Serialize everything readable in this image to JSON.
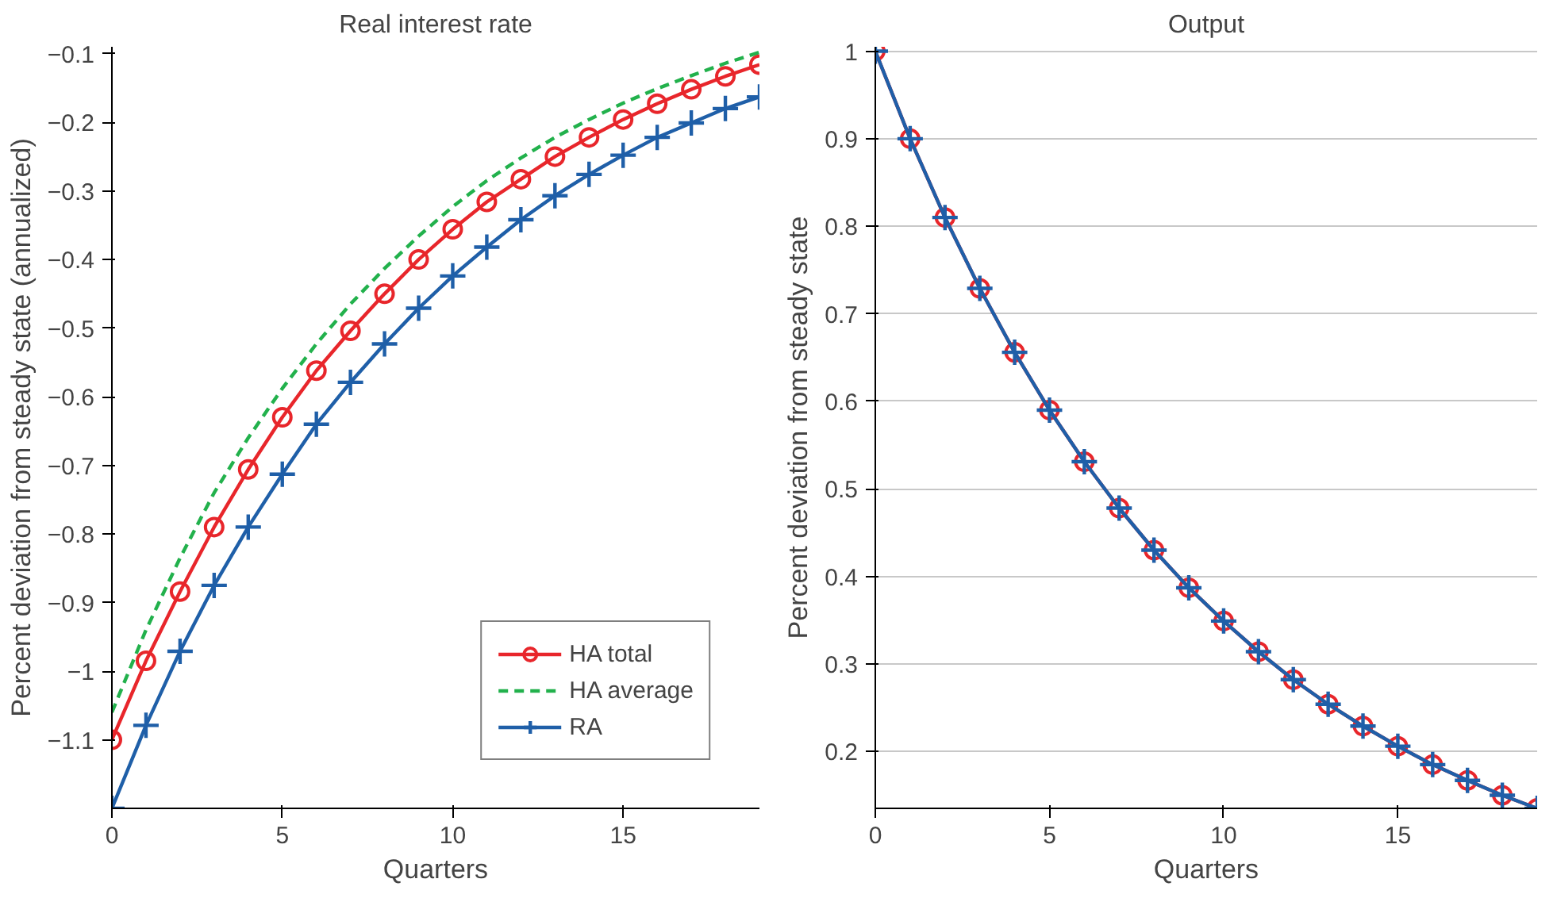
{
  "chart_data": [
    {
      "type": "line",
      "title": "Real interest rate",
      "xlabel": "Quarters",
      "ylabel": "Percent deviation from steady state (annualized)",
      "x": [
        0,
        1,
        2,
        3,
        4,
        5,
        6,
        7,
        8,
        9,
        10,
        11,
        12,
        13,
        14,
        15,
        16,
        17,
        18,
        19
      ],
      "xlim": [
        0,
        19
      ],
      "xticks": [
        0,
        5,
        10,
        15
      ],
      "ylim": [
        -1.2,
        -0.09
      ],
      "yticks": [
        {
          "value": -1.1,
          "label": "−1.1"
        },
        {
          "value": -1,
          "label": "−1"
        },
        {
          "value": -0.9,
          "label": "−0.9"
        },
        {
          "value": -0.8,
          "label": "−0.8"
        },
        {
          "value": -0.7,
          "label": "−0.7"
        },
        {
          "value": -0.6,
          "label": "−0.6"
        },
        {
          "value": -0.5,
          "label": "−0.5"
        },
        {
          "value": -0.4,
          "label": "−0.4"
        },
        {
          "value": -0.3,
          "label": "−0.3"
        },
        {
          "value": -0.2,
          "label": "−0.2"
        },
        {
          "value": -0.1,
          "label": "−0.1"
        }
      ],
      "grid": false,
      "legend": "bottom right",
      "series": [
        {
          "name": "HA total",
          "color": "#e8262b",
          "marker": "circle",
          "line_style": "solid",
          "values": [
            -1.1,
            -0.985,
            -0.884,
            -0.79,
            -0.706,
            -0.63,
            -0.562,
            -0.504,
            -0.45,
            -0.4,
            -0.356,
            -0.316,
            -0.283,
            -0.25,
            -0.222,
            -0.196,
            -0.173,
            -0.152,
            -0.133,
            -0.116
          ]
        },
        {
          "name": "HA average",
          "color": "#22b14c",
          "marker": "none",
          "line_style": "dashed",
          "values": [
            -1.06,
            -0.94,
            -0.835,
            -0.74,
            -0.66,
            -0.588,
            -0.523,
            -0.465,
            -0.413,
            -0.366,
            -0.323,
            -0.285,
            -0.252,
            -0.222,
            -0.196,
            -0.172,
            -0.151,
            -0.132,
            -0.114,
            -0.098
          ]
        },
        {
          "name": "RA",
          "color": "#1f5fa8",
          "marker": "cross",
          "line_style": "solid",
          "values": [
            -1.2,
            -1.079,
            -0.971,
            -0.875,
            -0.79,
            -0.713,
            -0.64,
            -0.579,
            -0.523,
            -0.471,
            -0.424,
            -0.382,
            -0.342,
            -0.307,
            -0.276,
            -0.248,
            -0.222,
            -0.201,
            -0.18,
            -0.163
          ]
        }
      ]
    },
    {
      "type": "line",
      "title": "Output",
      "xlabel": "Quarters",
      "ylabel": "Percent deviation from steady state",
      "x": [
        0,
        1,
        2,
        3,
        4,
        5,
        6,
        7,
        8,
        9,
        10,
        11,
        12,
        13,
        14,
        15,
        16,
        17,
        18,
        19
      ],
      "xlim": [
        0,
        19
      ],
      "xticks": [
        0,
        5,
        10,
        15
      ],
      "ylim": [
        0.135,
        1.005
      ],
      "yticks": [
        0.2,
        0.3,
        0.4,
        0.5,
        0.6,
        0.7,
        0.8,
        0.9,
        1
      ],
      "grid": "y",
      "legend": false,
      "series": [
        {
          "color": "#e8262b",
          "marker": "circle",
          "line_style": "solid",
          "values": [
            1,
            0.9,
            0.81,
            0.729,
            0.656,
            0.59,
            0.531,
            0.478,
            0.43,
            0.387,
            0.349,
            0.314,
            0.282,
            0.254,
            0.229,
            0.206,
            0.185,
            0.167,
            0.15,
            0.135
          ]
        },
        {
          "color": "#1f5fa8",
          "marker": "cross",
          "line_style": "solid",
          "values": [
            1,
            0.9,
            0.81,
            0.729,
            0.656,
            0.59,
            0.531,
            0.478,
            0.43,
            0.387,
            0.349,
            0.314,
            0.282,
            0.254,
            0.229,
            0.206,
            0.185,
            0.167,
            0.15,
            0.135
          ]
        }
      ]
    }
  ]
}
